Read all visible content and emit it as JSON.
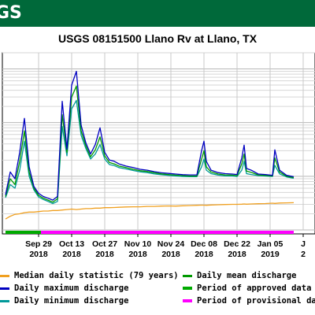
{
  "banner": {
    "text": "GS"
  },
  "chart_data": {
    "type": "line",
    "title": "USGS 08151500 Llano Rv at Llano, TX",
    "x_axis": {
      "start": "2018-09-15",
      "end": "2019-01-15",
      "ticks": [
        {
          "date": "2018-09-29",
          "label": "Sep 29",
          "year": "2018"
        },
        {
          "date": "2018-10-13",
          "label": "Oct 13",
          "year": "2018"
        },
        {
          "date": "2018-10-27",
          "label": "Oct 27",
          "year": "2018"
        },
        {
          "date": "2018-11-10",
          "label": "Nov 10",
          "year": "2018"
        },
        {
          "date": "2018-11-24",
          "label": "Nov 24",
          "year": "2018"
        },
        {
          "date": "2018-12-08",
          "label": "Dec 08",
          "year": "2018"
        },
        {
          "date": "2018-12-22",
          "label": "Dec 22",
          "year": "2018"
        },
        {
          "date": "2019-01-05",
          "label": "Jan 05",
          "year": "2019"
        },
        {
          "date": "2019-01-19",
          "label": "J",
          "year": "2"
        }
      ]
    },
    "y_axis": {
      "scale": "log",
      "range": [
        100,
        200000
      ]
    },
    "grid": true,
    "x": [
      "2018-09-15",
      "2018-09-17",
      "2018-09-19",
      "2018-09-21",
      "2018-09-23",
      "2018-09-25",
      "2018-09-27",
      "2018-09-29",
      "2018-10-01",
      "2018-10-03",
      "2018-10-05",
      "2018-10-07",
      "2018-10-09",
      "2018-10-11",
      "2018-10-13",
      "2018-10-15",
      "2018-10-17",
      "2018-10-19",
      "2018-10-21",
      "2018-10-23",
      "2018-10-25",
      "2018-10-27",
      "2018-10-29",
      "2018-10-31",
      "2018-11-02",
      "2018-11-05",
      "2018-11-08",
      "2018-11-11",
      "2018-11-14",
      "2018-11-17",
      "2018-11-20",
      "2018-11-23",
      "2018-11-26",
      "2018-11-29",
      "2018-12-02",
      "2018-12-05",
      "2018-12-07",
      "2018-12-08",
      "2018-12-09",
      "2018-12-11",
      "2018-12-14",
      "2018-12-17",
      "2018-12-20",
      "2018-12-22",
      "2018-12-24",
      "2018-12-25",
      "2018-12-26",
      "2018-12-28",
      "2018-12-31",
      "2019-01-03",
      "2019-01-06",
      "2019-01-07",
      "2019-01-09",
      "2019-01-12",
      "2019-01-15"
    ],
    "series": [
      {
        "name": "Daily maximum discharge",
        "color": "#0000c0",
        "values": [
          450,
          1200,
          900,
          2800,
          12000,
          1500,
          650,
          480,
          420,
          390,
          360,
          420,
          25000,
          3200,
          50000,
          90000,
          9000,
          4200,
          2600,
          3900,
          8000,
          2800,
          2000,
          1900,
          1700,
          1550,
          1450,
          1350,
          1300,
          1220,
          1160,
          1130,
          1100,
          1070,
          1060,
          1060,
          3000,
          4500,
          1900,
          1300,
          1170,
          1120,
          1100,
          1080,
          2200,
          3800,
          1400,
          1300,
          1100,
          1080,
          1040,
          3100,
          1300,
          1040,
          980
        ]
      },
      {
        "name": "Daily mean discharge",
        "color": "#009900",
        "values": [
          420,
          900,
          700,
          1900,
          7000,
          1200,
          600,
          440,
          390,
          360,
          330,
          380,
          14000,
          2800,
          30000,
          48000,
          7000,
          3700,
          2300,
          3100,
          5400,
          2400,
          1800,
          1700,
          1550,
          1450,
          1350,
          1270,
          1230,
          1160,
          1110,
          1080,
          1050,
          1030,
          1010,
          1010,
          2100,
          3000,
          1500,
          1200,
          1100,
          1060,
          1050,
          1030,
          1700,
          2600,
          1250,
          1180,
          1060,
          1040,
          1010,
          2200,
          1200,
          1000,
          950
        ]
      },
      {
        "name": "Daily minimum discharge",
        "color": "#009999",
        "values": [
          400,
          700,
          600,
          1300,
          4500,
          1000,
          560,
          410,
          370,
          340,
          310,
          340,
          8500,
          2400,
          18000,
          26000,
          5800,
          3300,
          2100,
          2600,
          3900,
          2100,
          1650,
          1580,
          1450,
          1370,
          1280,
          1210,
          1170,
          1110,
          1070,
          1040,
          1010,
          990,
          980,
          980,
          1500,
          2100,
          1300,
          1120,
          1050,
          1020,
          1010,
          990,
          1300,
          1900,
          1120,
          1080,
          1030,
          1010,
          990,
          1600,
          1110,
          970,
          920
        ]
      },
      {
        "name": "Median daily statistic (79 years)",
        "color": "#f0a020",
        "values": [
          160,
          180,
          195,
          200,
          210,
          215,
          215,
          220,
          225,
          225,
          230,
          230,
          235,
          240,
          245,
          240,
          245,
          250,
          250,
          255,
          255,
          260,
          260,
          262,
          265,
          268,
          270,
          270,
          275,
          275,
          278,
          280,
          278,
          282,
          285,
          288,
          290,
          290,
          288,
          292,
          295,
          298,
          300,
          300,
          302,
          305,
          302,
          305,
          308,
          310,
          315,
          312,
          318,
          320,
          322
        ]
      }
    ],
    "approval_bar": [
      {
        "name": "Period of approved data",
        "color": "#00aa00",
        "start": "2018-09-15",
        "end": "2018-09-30"
      },
      {
        "name": "Period of provisional data",
        "color": "#ff00ff",
        "start": "2018-09-30",
        "end": "2019-01-15"
      }
    ],
    "legend_placement": "bottom"
  },
  "legend": {
    "items": [
      {
        "label": "Median daily statistic (79 years)",
        "color": "#f0a020"
      },
      {
        "label": "Daily mean discharge",
        "color": "#009900"
      },
      {
        "label": "Daily maximum discharge",
        "color": "#0000c0"
      },
      {
        "label": "Period of approved data",
        "color": "#00aa00"
      },
      {
        "label": "Daily minimum discharge",
        "color": "#009999"
      },
      {
        "label": "Period of provisional data",
        "color": "#ff00ff"
      }
    ]
  }
}
